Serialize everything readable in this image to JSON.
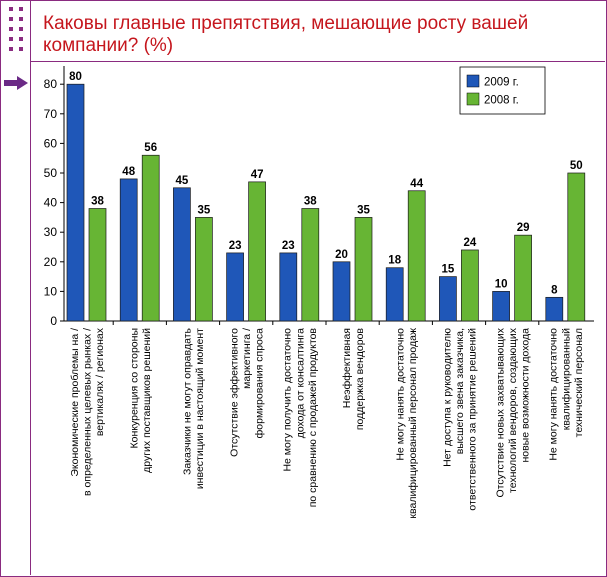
{
  "title": "Каковы главные препятствия, мешающие росту вашей компании? (%)",
  "colors": {
    "frame": "#8a2b80",
    "title": "#c5161d",
    "series_2009": "#1f57b8",
    "series_2008": "#67b534"
  },
  "icons": [
    "dotted-grid-icon",
    "arrow-right-icon"
  ],
  "chart_data": {
    "type": "bar",
    "title": "Каковы главные препятствия, мешающие росту вашей компании? (%)",
    "ylim": [
      0,
      85
    ],
    "yticks": [
      0,
      10,
      20,
      30,
      40,
      50,
      60,
      70,
      80
    ],
    "grid": false,
    "legend": "top-right",
    "categories": [
      [
        "Экономические проблемы на /",
        "в определенных целевых рынках /",
        "вертикалях / регионах"
      ],
      [
        "Конкуренция со стороны",
        "других поставщиков решений"
      ],
      [
        "Заказчики не могут оправдать",
        "инвестиции в настоящий момент"
      ],
      [
        "Отсутствие эффективного",
        "маркетинга /",
        "формирования спроса"
      ],
      [
        "Не могу получить достаточно",
        "дохода от консалтинга",
        "по сравнению с продажей продуктов"
      ],
      [
        "Неэффективная",
        "поддержка вендоров"
      ],
      [
        "Не могу нанять достаточно",
        "квалифицированный персонал продаж"
      ],
      [
        "Нет доступа к руководителю",
        "высшего звена заказчика,",
        "ответственного за принятие решений"
      ],
      [
        "Отсутствие новых захватывающих",
        "технологий вендоров, создающих",
        "новые возможности дохода"
      ],
      [
        "Не могу нанять достаточно",
        "квалифицированный",
        "технический персонал"
      ]
    ],
    "series": [
      {
        "name": "2009 г.",
        "color": "#1f57b8",
        "values": [
          80,
          48,
          45,
          23,
          23,
          20,
          18,
          15,
          10,
          8
        ]
      },
      {
        "name": "2008 г.",
        "color": "#67b534",
        "values": [
          38,
          56,
          35,
          47,
          38,
          35,
          44,
          24,
          29,
          50
        ]
      }
    ]
  }
}
